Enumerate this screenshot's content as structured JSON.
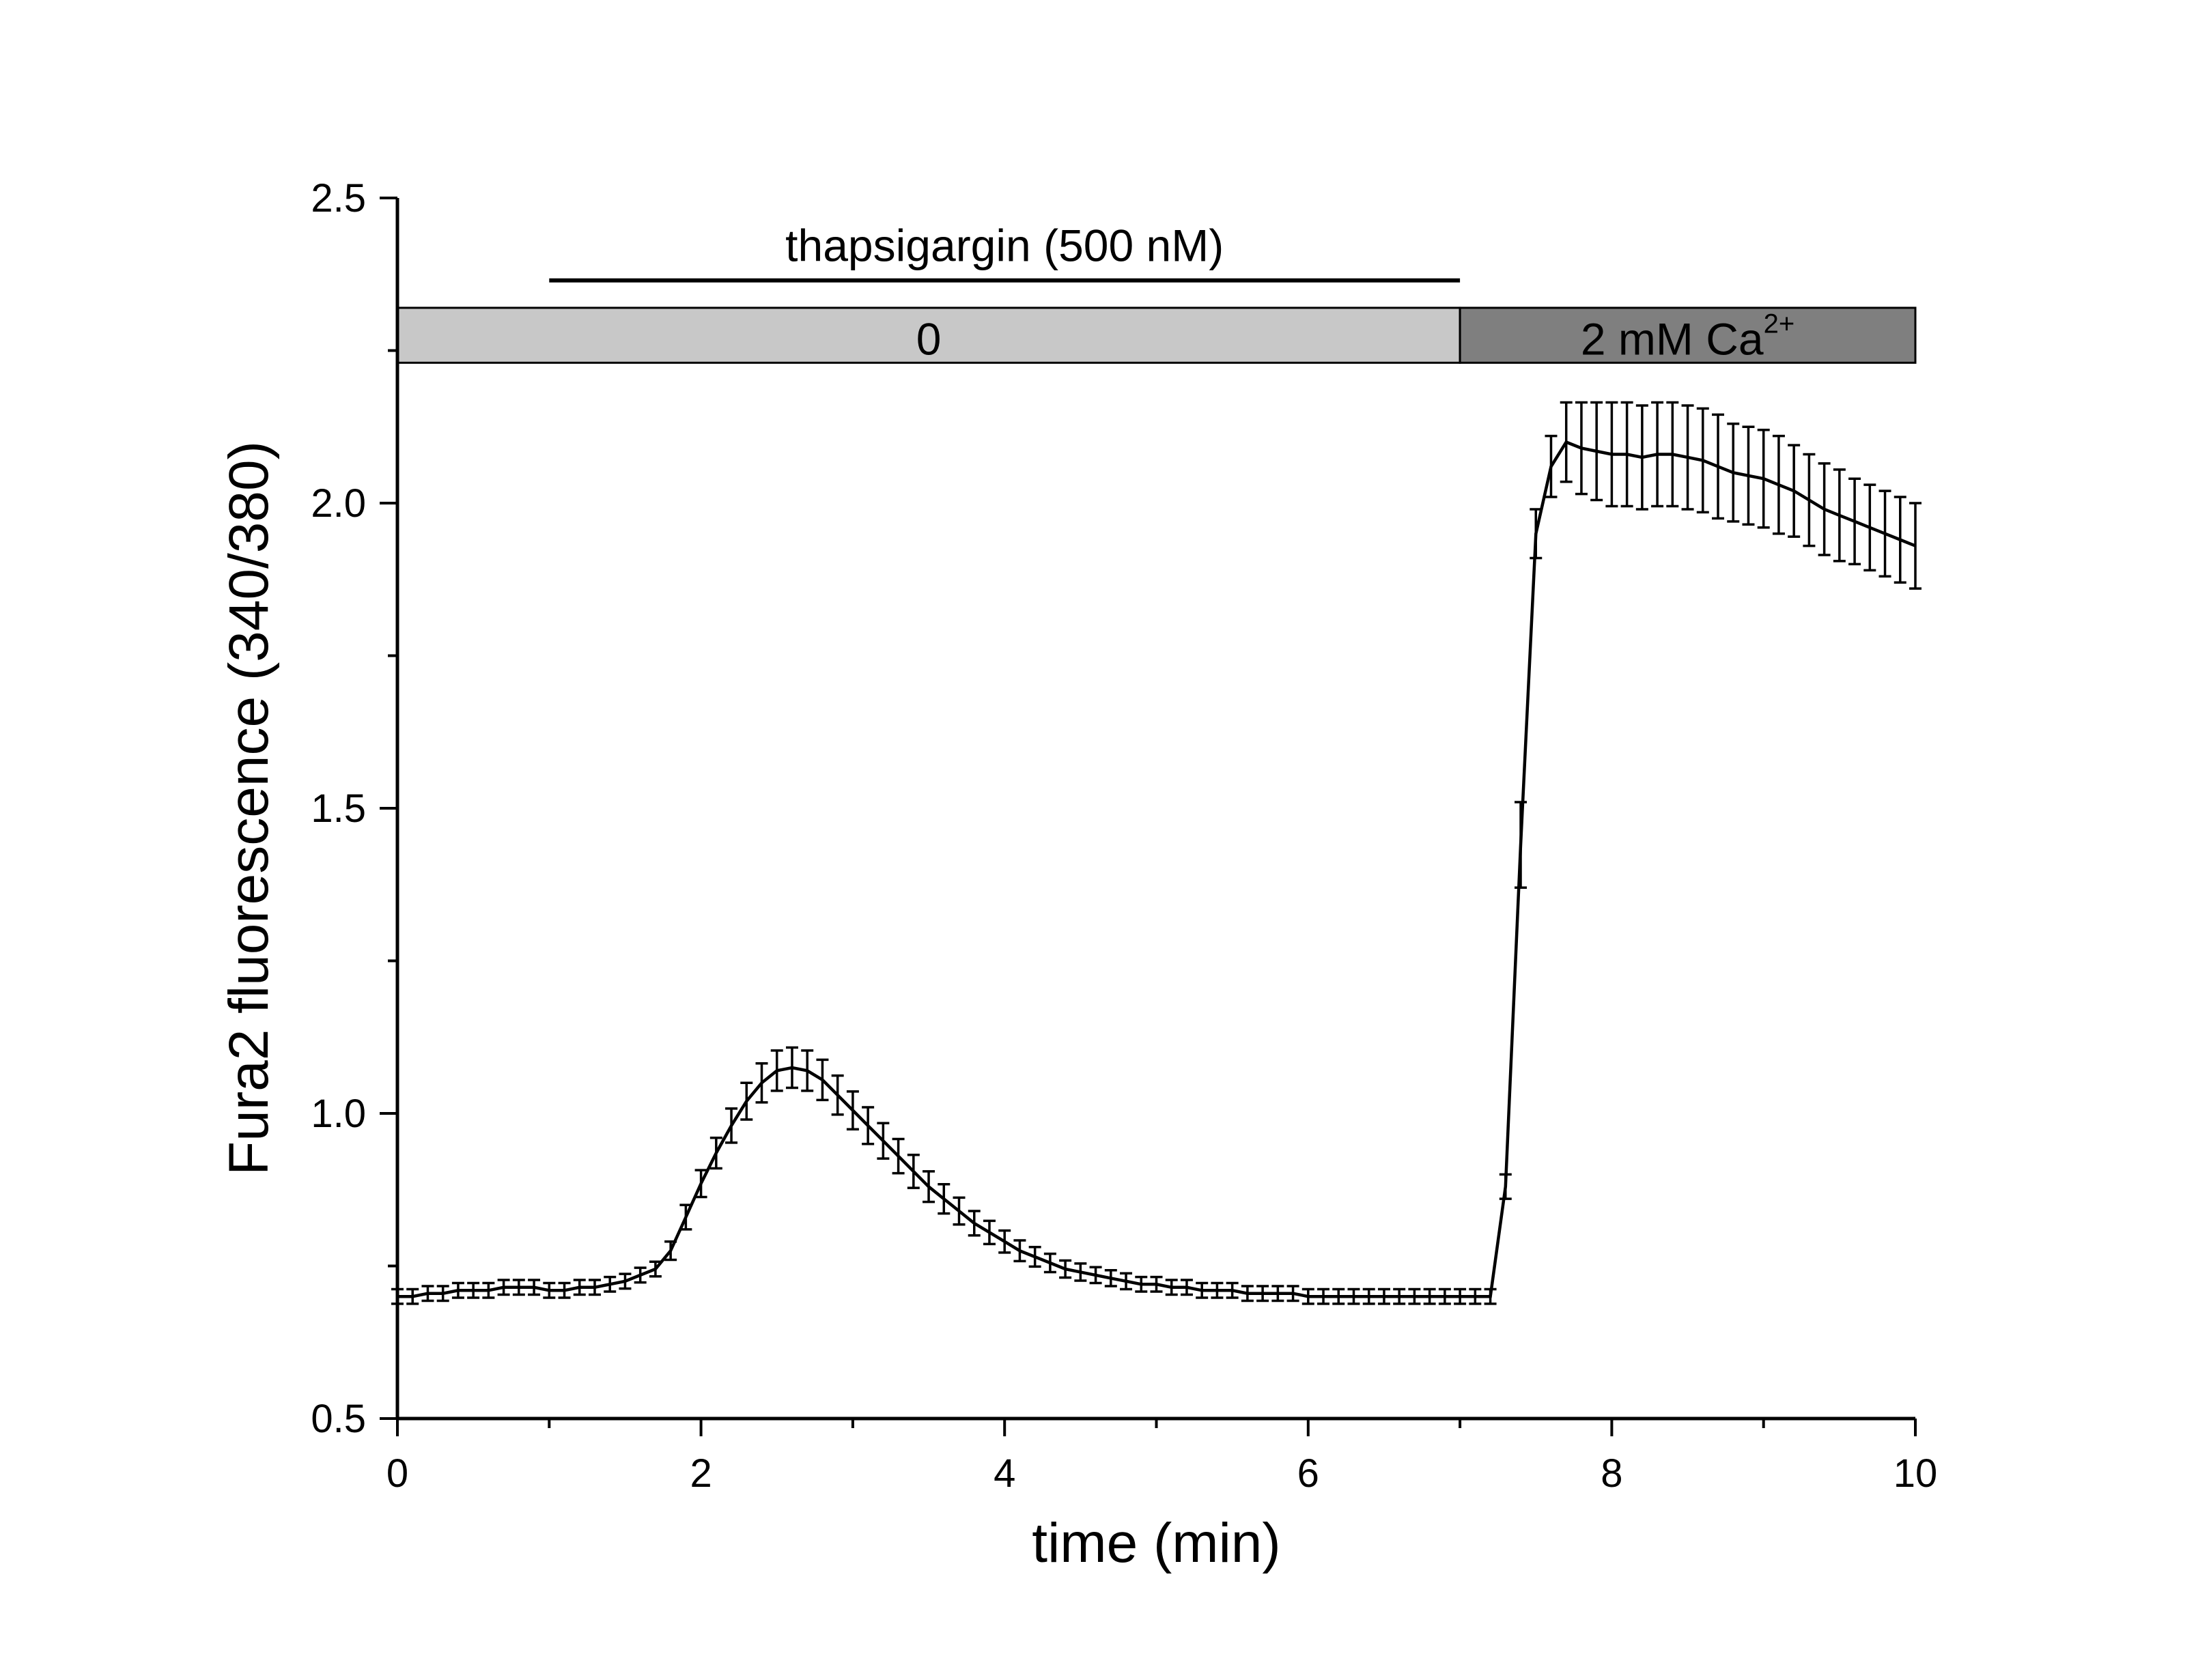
{
  "chart_data": {
    "type": "line",
    "xlabel": "time (min)",
    "ylabel": "Fura2 fluorescence (340/380)",
    "xlim": [
      0,
      10
    ],
    "ylim": [
      0.5,
      2.5
    ],
    "xticks": [
      0,
      2,
      4,
      6,
      8,
      10
    ],
    "xtick_labels": [
      "0",
      "2",
      "4",
      "6",
      "8",
      "10"
    ],
    "yticks": [
      0.5,
      1.0,
      1.5,
      2.0,
      2.5
    ],
    "ytick_labels": [
      "0.5",
      "1.0",
      "1.5",
      "2.0",
      "2.5"
    ],
    "grid": false,
    "annotations": {
      "drug_label": "thapsigargin (500 nM)",
      "drug_start": 1.0,
      "drug_end": 7.0,
      "bar_level_top": 2.32,
      "bar_level_bottom": 2.23,
      "segments": [
        {
          "label": "0",
          "sup": "",
          "start": 0.0,
          "end": 7.0,
          "color": "#c8c8c8"
        },
        {
          "label": "2 mM Ca",
          "sup": "2+",
          "start": 7.0,
          "end": 10.0,
          "color": "#7f7f7f"
        }
      ]
    },
    "series": [
      {
        "color": "#000000",
        "x": [
          0.0,
          0.1,
          0.2,
          0.3,
          0.4,
          0.5,
          0.6,
          0.7,
          0.8,
          0.9,
          1.0,
          1.1,
          1.2,
          1.3,
          1.4,
          1.5,
          1.6,
          1.7,
          1.8,
          1.9,
          2.0,
          2.1,
          2.2,
          2.3,
          2.4,
          2.5,
          2.6,
          2.7,
          2.8,
          2.9,
          3.0,
          3.1,
          3.2,
          3.3,
          3.4,
          3.5,
          3.6,
          3.7,
          3.8,
          3.9,
          4.0,
          4.1,
          4.2,
          4.3,
          4.4,
          4.5,
          4.6,
          4.7,
          4.8,
          4.9,
          5.0,
          5.1,
          5.2,
          5.3,
          5.4,
          5.5,
          5.6,
          5.7,
          5.8,
          5.9,
          6.0,
          6.1,
          6.2,
          6.3,
          6.4,
          6.5,
          6.6,
          6.7,
          6.8,
          6.9,
          7.0,
          7.1,
          7.2,
          7.3,
          7.4,
          7.5,
          7.6,
          7.7,
          7.8,
          7.9,
          8.0,
          8.1,
          8.2,
          8.3,
          8.4,
          8.5,
          8.6,
          8.7,
          8.8,
          8.9,
          9.0,
          9.1,
          9.2,
          9.3,
          9.4,
          9.5,
          9.6,
          9.7,
          9.8,
          9.9,
          10.0
        ],
        "y": [
          0.7,
          0.7,
          0.705,
          0.705,
          0.71,
          0.71,
          0.71,
          0.715,
          0.715,
          0.715,
          0.71,
          0.71,
          0.715,
          0.715,
          0.72,
          0.725,
          0.735,
          0.745,
          0.775,
          0.83,
          0.885,
          0.935,
          0.98,
          1.02,
          1.05,
          1.07,
          1.075,
          1.07,
          1.055,
          1.03,
          1.005,
          0.98,
          0.955,
          0.93,
          0.905,
          0.88,
          0.86,
          0.84,
          0.82,
          0.805,
          0.79,
          0.775,
          0.765,
          0.755,
          0.745,
          0.74,
          0.735,
          0.73,
          0.725,
          0.72,
          0.72,
          0.715,
          0.715,
          0.71,
          0.71,
          0.71,
          0.705,
          0.705,
          0.705,
          0.705,
          0.7,
          0.7,
          0.7,
          0.7,
          0.7,
          0.7,
          0.7,
          0.7,
          0.7,
          0.7,
          0.7,
          0.7,
          0.7,
          0.88,
          1.44,
          1.95,
          2.06,
          2.1,
          2.09,
          2.085,
          2.08,
          2.08,
          2.075,
          2.08,
          2.08,
          2.075,
          2.07,
          2.06,
          2.05,
          2.045,
          2.04,
          2.03,
          2.02,
          2.005,
          1.99,
          1.98,
          1.97,
          1.96,
          1.95,
          1.94,
          1.93
        ],
        "err": [
          0.012,
          0.012,
          0.012,
          0.012,
          0.012,
          0.012,
          0.012,
          0.012,
          0.012,
          0.012,
          0.012,
          0.012,
          0.012,
          0.012,
          0.012,
          0.012,
          0.012,
          0.012,
          0.015,
          0.02,
          0.022,
          0.025,
          0.028,
          0.03,
          0.032,
          0.033,
          0.033,
          0.033,
          0.033,
          0.032,
          0.031,
          0.03,
          0.029,
          0.028,
          0.027,
          0.025,
          0.024,
          0.022,
          0.02,
          0.019,
          0.018,
          0.017,
          0.016,
          0.015,
          0.014,
          0.014,
          0.013,
          0.013,
          0.013,
          0.012,
          0.012,
          0.012,
          0.012,
          0.012,
          0.012,
          0.012,
          0.012,
          0.012,
          0.012,
          0.012,
          0.012,
          0.012,
          0.012,
          0.012,
          0.012,
          0.012,
          0.012,
          0.012,
          0.012,
          0.012,
          0.012,
          0.012,
          0.012,
          0.02,
          0.07,
          0.04,
          0.05,
          0.065,
          0.075,
          0.08,
          0.085,
          0.085,
          0.085,
          0.085,
          0.085,
          0.085,
          0.085,
          0.085,
          0.08,
          0.08,
          0.08,
          0.08,
          0.075,
          0.075,
          0.075,
          0.075,
          0.07,
          0.07,
          0.07,
          0.07,
          0.07
        ]
      }
    ]
  }
}
